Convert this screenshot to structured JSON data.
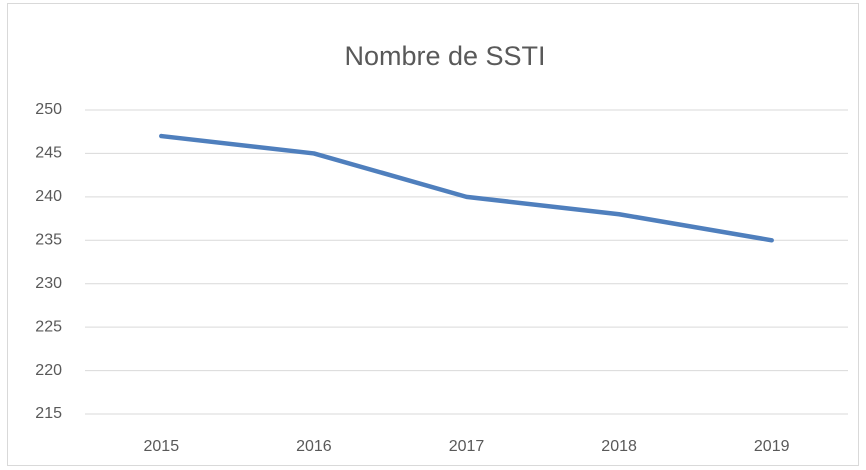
{
  "chart_data": {
    "type": "line",
    "title": "Nombre de SSTI",
    "categories": [
      "2015",
      "2016",
      "2017",
      "2018",
      "2019"
    ],
    "series": [
      {
        "name": "Nombre de SSTI",
        "color": "#4f7fbd",
        "values": [
          247,
          245,
          240,
          238,
          235
        ]
      }
    ],
    "ylim": [
      215,
      250
    ],
    "yticks": [
      215,
      220,
      225,
      230,
      235,
      240,
      245,
      250
    ],
    "grid": true
  }
}
